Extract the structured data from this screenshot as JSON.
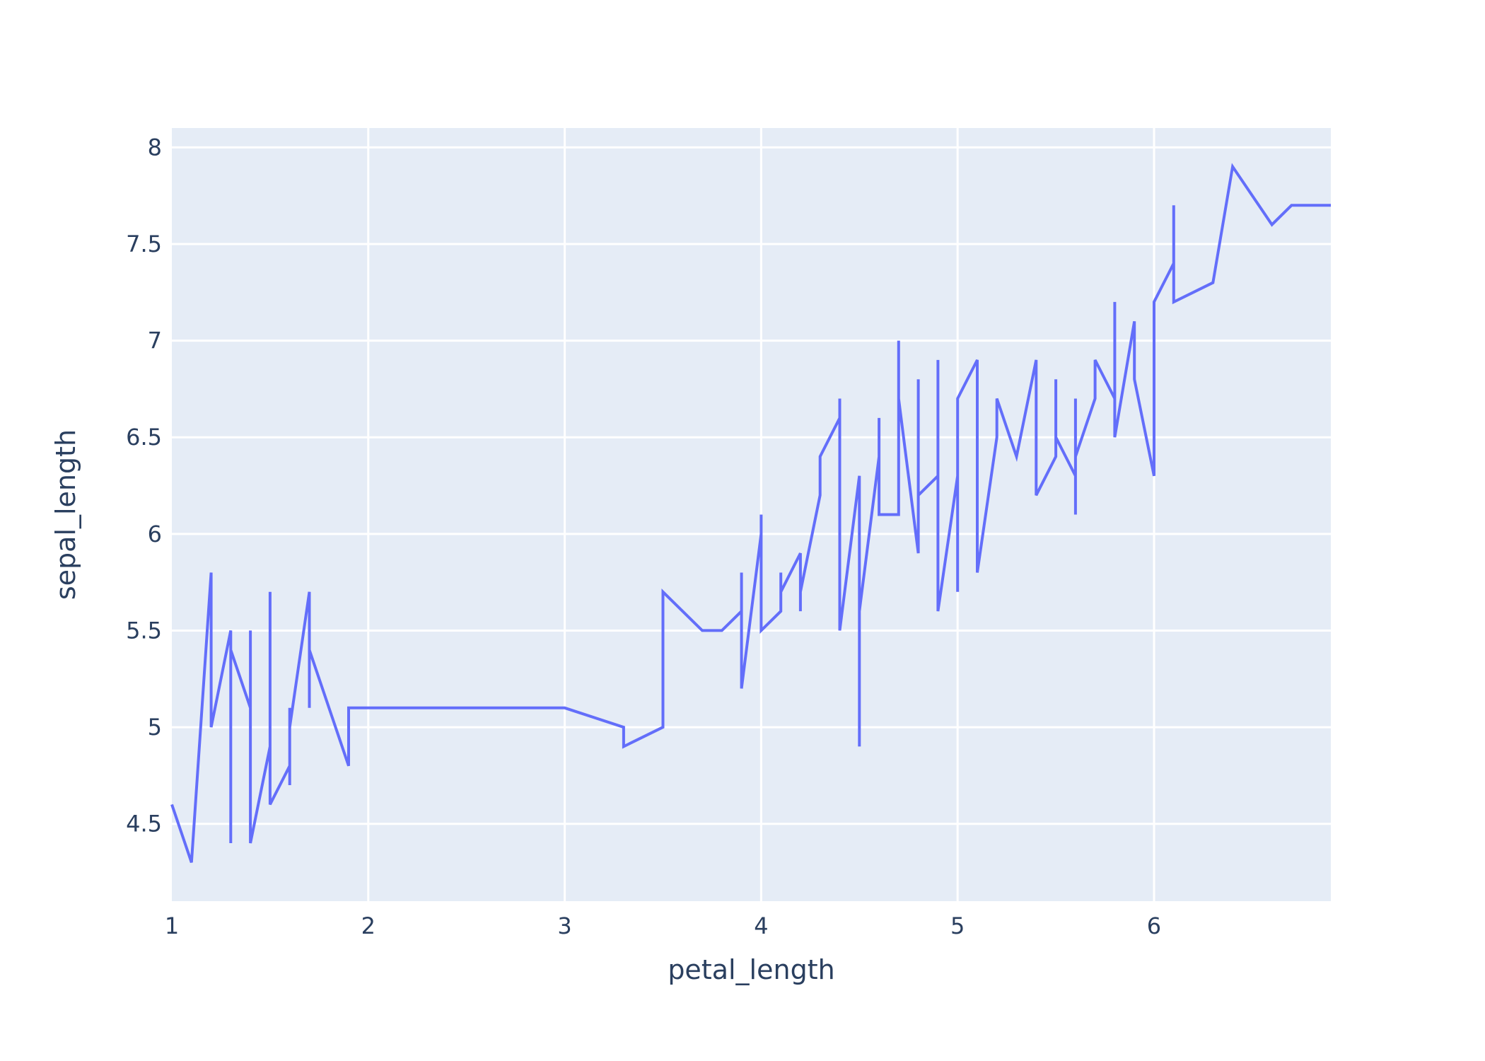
{
  "chart_data": {
    "type": "line",
    "title": "",
    "xlabel": "petal_length",
    "ylabel": "sepal_length",
    "xlim": [
      1,
      6.9
    ],
    "ylim": [
      4.1,
      8.1
    ],
    "x_ticks": [
      1,
      2,
      3,
      4,
      5,
      6
    ],
    "y_ticks": [
      4.5,
      5,
      5.5,
      6,
      6.5,
      7,
      7.5,
      8
    ],
    "grid": true,
    "legend": "none",
    "colors": {
      "line": "#636efa",
      "plot_bg": "#e5ecf6",
      "grid": "#ffffff",
      "text": "#2a3f5f"
    },
    "series": [
      {
        "x": [
          1.0,
          1.1,
          1.2,
          1.2,
          1.2,
          1.3,
          1.3,
          1.3,
          1.3,
          1.4,
          1.4,
          1.4,
          1.5,
          1.5,
          1.5,
          1.6,
          1.6,
          1.6,
          1.6,
          1.7,
          1.7,
          1.7,
          1.9,
          1.9,
          3.0,
          3.3,
          3.3,
          3.5,
          3.5,
          3.7,
          3.8,
          3.9,
          3.9,
          3.9,
          4.0,
          4.0,
          4.0,
          4.1,
          4.1,
          4.1,
          4.2,
          4.2,
          4.2,
          4.3,
          4.3,
          4.4,
          4.4,
          4.4,
          4.5,
          4.5,
          4.5,
          4.6,
          4.6,
          4.6,
          4.7,
          4.7,
          4.7,
          4.8,
          4.8,
          4.8,
          4.9,
          4.9,
          4.9,
          5.0,
          5.0,
          5.0,
          5.1,
          5.1,
          5.2,
          5.2,
          5.2,
          5.3,
          5.4,
          5.4,
          5.5,
          5.5,
          5.5,
          5.6,
          5.6,
          5.6,
          5.6,
          5.7,
          5.7,
          5.8,
          5.8,
          5.8,
          5.9,
          5.9,
          6.0,
          6.0,
          6.1,
          6.1,
          6.1,
          6.3,
          6.4,
          6.6,
          6.7,
          6.9
        ],
        "y": [
          4.6,
          4.3,
          5.8,
          5.0,
          5.0,
          5.5,
          4.4,
          5.4,
          5.4,
          5.1,
          5.5,
          4.4,
          4.9,
          5.7,
          4.6,
          4.8,
          4.7,
          5.1,
          5.0,
          5.7,
          5.1,
          5.4,
          4.8,
          5.1,
          5.1,
          5.0,
          4.9,
          5.0,
          5.7,
          5.5,
          5.5,
          5.6,
          5.8,
          5.2,
          6.0,
          6.1,
          5.5,
          5.6,
          5.8,
          5.7,
          5.9,
          5.6,
          5.7,
          6.2,
          6.4,
          6.6,
          6.7,
          5.5,
          6.3,
          4.9,
          5.6,
          6.4,
          6.6,
          6.1,
          6.1,
          7.0,
          6.7,
          5.9,
          6.8,
          6.2,
          6.3,
          6.9,
          5.6,
          6.3,
          5.7,
          6.7,
          6.9,
          5.8,
          6.5,
          6.7,
          6.7,
          6.4,
          6.9,
          6.2,
          6.4,
          6.8,
          6.5,
          6.3,
          6.7,
          6.1,
          6.4,
          6.7,
          6.9,
          6.7,
          7.2,
          6.5,
          7.1,
          6.8,
          6.3,
          7.2,
          7.4,
          7.7,
          7.2,
          7.3,
          7.9,
          7.6,
          7.7,
          7.7
        ]
      }
    ]
  }
}
